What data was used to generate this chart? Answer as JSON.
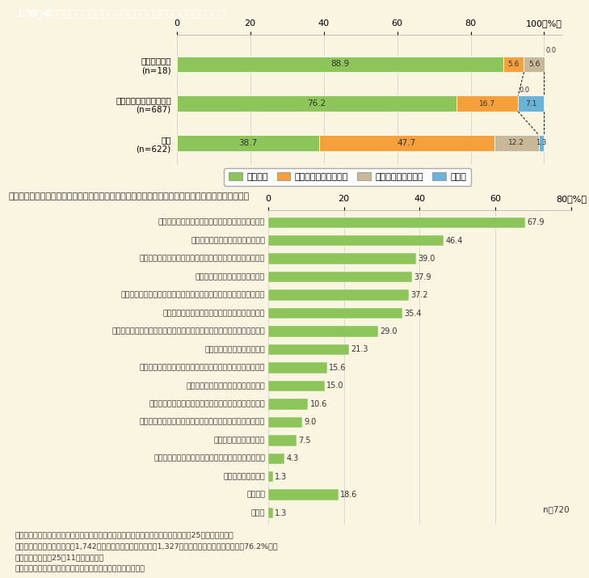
{
  "title": "1－6－4図　東日本大震災以降の地域防災計画の見直し（市区町村）",
  "background_color": "#faf5e0",
  "title_bg_color": "#8b7355",
  "title_text_color": "#ffffff",
  "top_chart": {
    "categories": [
      "政令指定都市\n(n=18)",
      "政令指定都市以外の市区\n(n=687)",
      "町村\n(n=622)"
    ],
    "data": [
      [
        88.9,
        5.6,
        5.6,
        0.0
      ],
      [
        76.2,
        16.7,
        0.0,
        7.1
      ],
      [
        38.7,
        47.7,
        12.2,
        1.3
      ]
    ],
    "colors": [
      "#8dc55a",
      "#f5a03a",
      "#c8b898",
      "#6bb3d6"
    ],
    "legend_labels": [
      "見直した",
      "見直しを検討している",
      "見直しは未定である",
      "無回答"
    ],
    "xlim": [
      0,
      105
    ]
  },
  "bottom_chart": {
    "categories": [
      "避難所運営における男女のニーズの違い等への配慮",
      "避難所運営における女性の参画促進",
      "物資の調達，供給活動における男女のニーズの違いへの配慮",
      "自主防災組織への女性の参画促進",
      "防災知識の普及・訓練における被災時の男女のニーズの違いへの配慮",
      "男女共同参画の視点を取り入れた防災体制の確立",
      "防災に関する政策・方針決定過程及び防災の現場における女性の参画拡大",
      "消防団員への女性の参画促進",
      "仮設住宅運営における女性を始めとする生活者の意見の反映",
      "仮設住宅運営における女性の参画促進",
      "復旧・復興のあらゆる場・組織における女性の参画促進",
      "復興まちづくり（防災まちづくり）への女性等の意見の反映",
      "女性に対する暴力の防止",
      "帰宅困難者対策における男女のニーズの違いへの配慮",
      "男女別データの整備",
      "特にない",
      "その他"
    ],
    "values": [
      67.9,
      46.4,
      39.0,
      37.9,
      37.2,
      35.4,
      29.0,
      21.3,
      15.6,
      15.0,
      10.6,
      9.0,
      7.5,
      4.3,
      1.3,
      18.6,
      1.3
    ],
    "bar_color": "#8dc55a",
    "xlim": [
      0,
      80
    ],
    "n_label": "n＝720",
    "subtitle": "（参考：東日本大震災以降に見直した地域防災計画における男女共同参画関連の記載（複数回答））"
  },
  "footnotes": [
    "（備考）１．内閣府「市区町村における男女共同参画に係る施策の推進状況」（平成25年）より作成。",
    "　　　　２．全国の市区町村1,742団体を対象に調査を実施し，1,327団体から回答があった（回収率76.2%）。",
    "　　　　３．平成25年11月１日現在。",
    "　　　　４．「政令指定都市以外の市区」には特別区を含む。"
  ]
}
